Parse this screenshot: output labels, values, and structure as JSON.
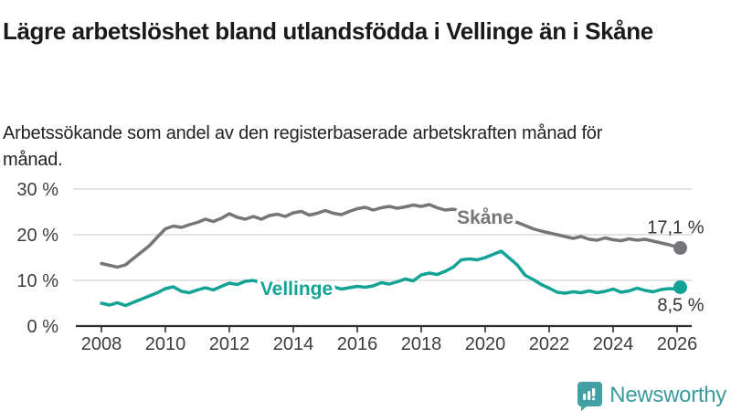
{
  "header": {
    "title": "Lägre arbetslöshet bland utlandsfödda i Vellinge än i Skåne",
    "subtitle": "Arbetssökande som andel av den registerbaserade arbetskraften månad för månad."
  },
  "chart_data": {
    "type": "line",
    "title": "Lägre arbetslöshet bland utlandsfödda i Vellinge än i Skåne",
    "subtitle": "Arbetssökande som andel av den registerbaserade arbetskraften månad för månad.",
    "grid": true,
    "legend_position": "inline-labels-on-lines",
    "x_axis": {
      "base": 2008,
      "tick_values": [
        2008,
        2010,
        2012,
        2014,
        2016,
        2018,
        2020,
        2022,
        2024,
        2026
      ],
      "tick_labels": [
        "2008",
        "2010",
        "2012",
        "2014",
        "2016",
        "2018",
        "2020",
        "2022",
        "2024",
        "2026"
      ],
      "range": [
        2007.3,
        2026.5
      ]
    },
    "y_axis": {
      "tick_values": [
        0,
        10,
        20,
        30
      ],
      "tick_labels": [
        "0 %",
        "10 %",
        "20 %",
        "30 %"
      ],
      "range": [
        0,
        30
      ],
      "unit": "%"
    },
    "series": [
      {
        "id": "skane",
        "name": "Skåne",
        "color": "#75757a",
        "label_at": [
          2020.0,
          23.8
        ],
        "end_label": "17,1 %",
        "end_value": 17.1,
        "end_label_position": "above",
        "points": [
          [
            2008.0,
            13.7
          ],
          [
            2008.25,
            13.3
          ],
          [
            2008.5,
            12.9
          ],
          [
            2008.75,
            13.4
          ],
          [
            2009.0,
            14.8
          ],
          [
            2009.25,
            16.2
          ],
          [
            2009.5,
            17.6
          ],
          [
            2009.75,
            19.5
          ],
          [
            2010.0,
            21.3
          ],
          [
            2010.25,
            21.9
          ],
          [
            2010.5,
            21.6
          ],
          [
            2010.75,
            22.2
          ],
          [
            2011.0,
            22.7
          ],
          [
            2011.25,
            23.4
          ],
          [
            2011.5,
            22.9
          ],
          [
            2011.75,
            23.6
          ],
          [
            2012.0,
            24.6
          ],
          [
            2012.25,
            23.8
          ],
          [
            2012.5,
            23.4
          ],
          [
            2012.75,
            24.0
          ],
          [
            2013.0,
            23.4
          ],
          [
            2013.25,
            24.2
          ],
          [
            2013.5,
            24.5
          ],
          [
            2013.75,
            24.0
          ],
          [
            2014.0,
            24.8
          ],
          [
            2014.25,
            25.1
          ],
          [
            2014.5,
            24.3
          ],
          [
            2014.75,
            24.7
          ],
          [
            2015.0,
            25.3
          ],
          [
            2015.25,
            24.7
          ],
          [
            2015.5,
            24.4
          ],
          [
            2015.75,
            25.1
          ],
          [
            2016.0,
            25.7
          ],
          [
            2016.25,
            26.0
          ],
          [
            2016.5,
            25.4
          ],
          [
            2016.75,
            25.9
          ],
          [
            2017.0,
            26.2
          ],
          [
            2017.25,
            25.8
          ],
          [
            2017.5,
            26.1
          ],
          [
            2017.75,
            26.5
          ],
          [
            2018.0,
            26.2
          ],
          [
            2018.25,
            26.6
          ],
          [
            2018.5,
            25.9
          ],
          [
            2018.75,
            25.4
          ],
          [
            2019.0,
            25.6
          ],
          [
            2019.25,
            25.1
          ],
          [
            2019.5,
            24.8
          ],
          [
            2019.75,
            24.5
          ],
          [
            2020.0,
            24.1
          ],
          [
            2020.25,
            23.8
          ],
          [
            2020.5,
            23.4
          ],
          [
            2020.75,
            23.1
          ],
          [
            2021.0,
            22.7
          ],
          [
            2021.25,
            22.0
          ],
          [
            2021.5,
            21.3
          ],
          [
            2021.75,
            20.8
          ],
          [
            2022.0,
            20.4
          ],
          [
            2022.25,
            20.0
          ],
          [
            2022.5,
            19.6
          ],
          [
            2022.75,
            19.2
          ],
          [
            2023.0,
            19.6
          ],
          [
            2023.25,
            19.0
          ],
          [
            2023.5,
            18.8
          ],
          [
            2023.75,
            19.3
          ],
          [
            2024.0,
            18.9
          ],
          [
            2024.25,
            18.7
          ],
          [
            2024.5,
            19.1
          ],
          [
            2024.75,
            18.8
          ],
          [
            2025.0,
            19.0
          ],
          [
            2025.25,
            18.6
          ],
          [
            2025.5,
            18.2
          ],
          [
            2025.75,
            17.8
          ],
          [
            2026.0,
            17.3
          ],
          [
            2026.1,
            17.1
          ]
        ]
      },
      {
        "id": "vellinge",
        "name": "Vellinge",
        "color": "#12a296",
        "label_at": [
          2014.1,
          8.2
        ],
        "end_label": "8,5 %",
        "end_value": 8.5,
        "end_label_position": "below",
        "points": [
          [
            2008.0,
            5.0
          ],
          [
            2008.25,
            4.6
          ],
          [
            2008.5,
            5.1
          ],
          [
            2008.75,
            4.5
          ],
          [
            2009.0,
            5.2
          ],
          [
            2009.25,
            5.9
          ],
          [
            2009.5,
            6.6
          ],
          [
            2009.75,
            7.3
          ],
          [
            2010.0,
            8.2
          ],
          [
            2010.25,
            8.6
          ],
          [
            2010.5,
            7.6
          ],
          [
            2010.75,
            7.3
          ],
          [
            2011.0,
            7.9
          ],
          [
            2011.25,
            8.4
          ],
          [
            2011.5,
            7.9
          ],
          [
            2011.75,
            8.7
          ],
          [
            2012.0,
            9.4
          ],
          [
            2012.25,
            9.1
          ],
          [
            2012.5,
            9.8
          ],
          [
            2012.75,
            10.0
          ],
          [
            2013.0,
            9.5
          ],
          [
            2013.25,
            8.9
          ],
          [
            2013.5,
            9.3
          ],
          [
            2013.75,
            8.9
          ],
          [
            2014.0,
            8.5
          ],
          [
            2014.25,
            9.0
          ],
          [
            2014.5,
            8.2
          ],
          [
            2014.75,
            7.9
          ],
          [
            2015.0,
            8.3
          ],
          [
            2015.25,
            8.6
          ],
          [
            2015.5,
            8.1
          ],
          [
            2015.75,
            8.4
          ],
          [
            2016.0,
            8.7
          ],
          [
            2016.25,
            8.5
          ],
          [
            2016.5,
            8.8
          ],
          [
            2016.75,
            9.5
          ],
          [
            2017.0,
            9.2
          ],
          [
            2017.25,
            9.7
          ],
          [
            2017.5,
            10.3
          ],
          [
            2017.75,
            9.9
          ],
          [
            2018.0,
            11.2
          ],
          [
            2018.25,
            11.6
          ],
          [
            2018.5,
            11.3
          ],
          [
            2018.75,
            12.0
          ],
          [
            2019.0,
            12.9
          ],
          [
            2019.25,
            14.5
          ],
          [
            2019.5,
            14.7
          ],
          [
            2019.75,
            14.5
          ],
          [
            2020.0,
            15.0
          ],
          [
            2020.25,
            15.7
          ],
          [
            2020.5,
            16.4
          ],
          [
            2020.75,
            14.9
          ],
          [
            2021.0,
            13.4
          ],
          [
            2021.25,
            11.1
          ],
          [
            2021.5,
            10.2
          ],
          [
            2021.75,
            9.1
          ],
          [
            2022.0,
            8.3
          ],
          [
            2022.25,
            7.4
          ],
          [
            2022.5,
            7.2
          ],
          [
            2022.75,
            7.5
          ],
          [
            2023.0,
            7.3
          ],
          [
            2023.25,
            7.7
          ],
          [
            2023.5,
            7.3
          ],
          [
            2023.75,
            7.6
          ],
          [
            2024.0,
            8.1
          ],
          [
            2024.25,
            7.4
          ],
          [
            2024.5,
            7.7
          ],
          [
            2024.75,
            8.3
          ],
          [
            2025.0,
            7.8
          ],
          [
            2025.25,
            7.5
          ],
          [
            2025.5,
            8.0
          ],
          [
            2025.75,
            8.2
          ],
          [
            2026.0,
            8.1
          ],
          [
            2026.1,
            8.5
          ]
        ]
      }
    ],
    "colors": {
      "grid": "#d9d9d9",
      "axis": "#2e2e2e",
      "tick_label": "#3d3d3d",
      "value_label": "#333333"
    }
  },
  "footer": {
    "brand": "Newsworthy",
    "brand_color": "#3a9b9e",
    "brand_icon": "bar-chart-speech-bubble-icon"
  }
}
